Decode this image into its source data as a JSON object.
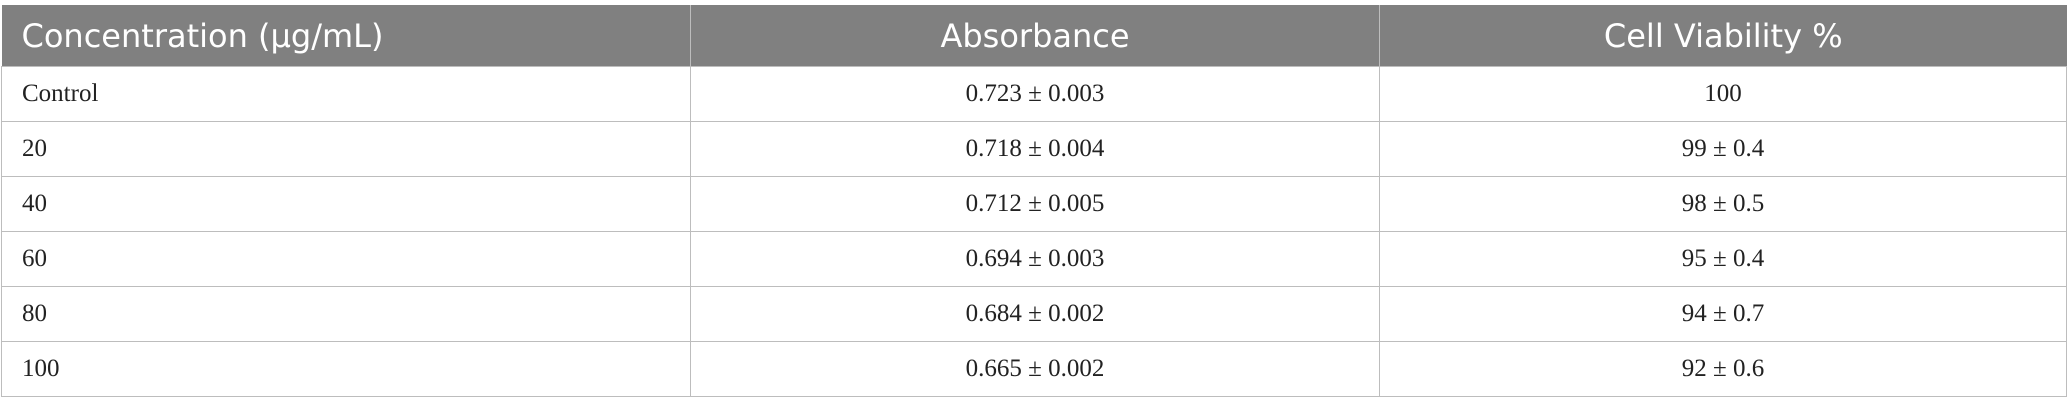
{
  "table": {
    "header": [
      "Concentration (μg/mL)",
      "Absorbance",
      "Cell Viability %"
    ],
    "rows": [
      [
        "Control",
        "0.723 ± 0.003",
        "100"
      ],
      [
        "20",
        "0.718 ± 0.004",
        "99 ± 0.4"
      ],
      [
        "40",
        "0.712 ± 0.005",
        "98 ± 0.5"
      ],
      [
        "60",
        "0.694 ± 0.003",
        "95 ± 0.4"
      ],
      [
        "80",
        "0.684 ± 0.002",
        "94 ± 0.7"
      ],
      [
        "100",
        "0.665 ± 0.002",
        "92 ± 0.6"
      ]
    ]
  }
}
